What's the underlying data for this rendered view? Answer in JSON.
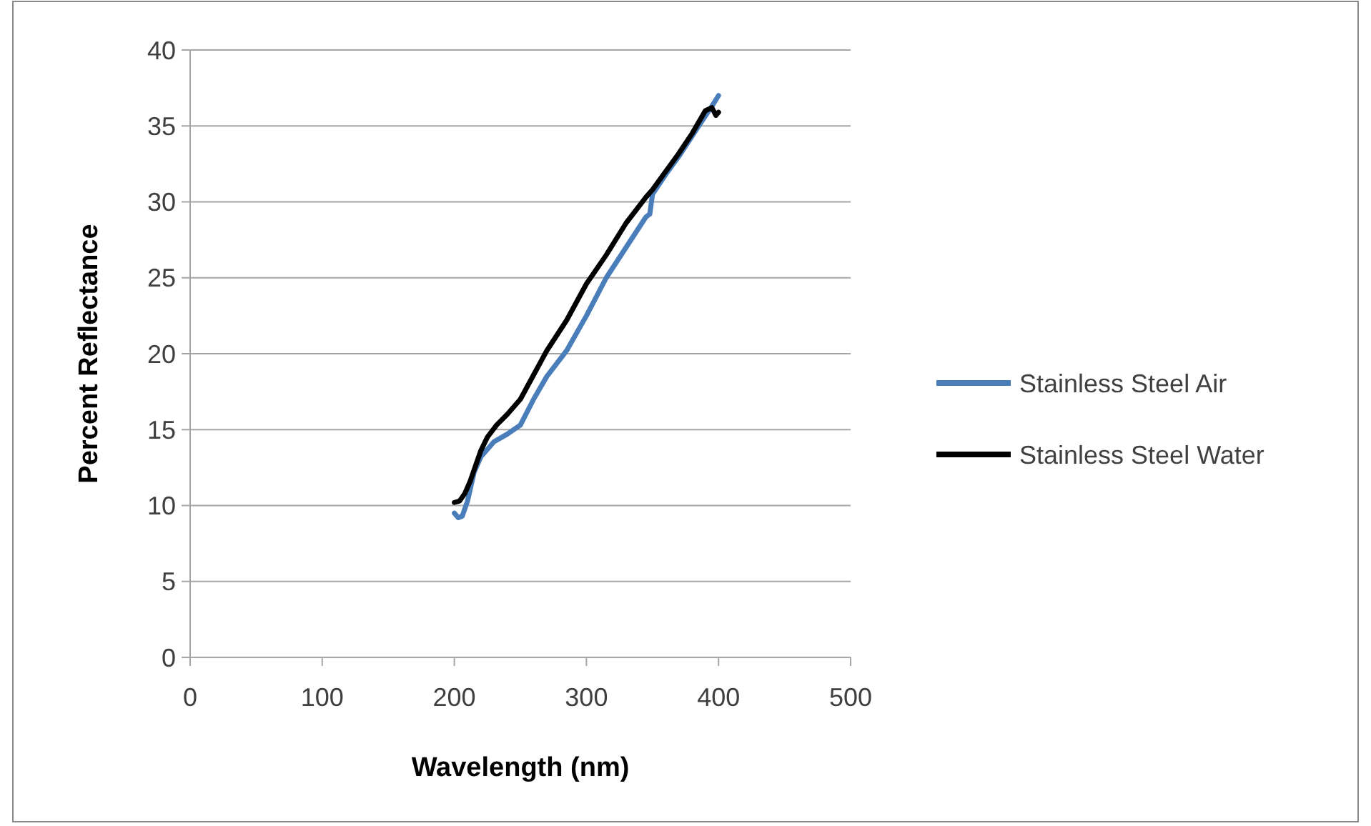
{
  "chart_data": {
    "type": "line",
    "xlabel": "Wavelength (nm)",
    "ylabel": "Percent Reflectance",
    "xlim": [
      0,
      500
    ],
    "xticks": [
      0,
      100,
      200,
      300,
      400,
      500
    ],
    "ylim": [
      0,
      40
    ],
    "yticks": [
      0,
      5,
      10,
      15,
      20,
      25,
      30,
      35,
      40
    ],
    "grid": "y",
    "legend": "right",
    "marker": "none",
    "line_style": "solid",
    "series": [
      {
        "name": "Stainless Steel Air",
        "color": "#4a7ebb",
        "x": [
          200,
          203,
          206,
          210,
          215,
          220,
          230,
          240,
          250,
          260,
          270,
          285,
          300,
          315,
          330,
          345,
          348,
          350,
          360,
          370,
          385,
          395,
          400
        ],
        "values": [
          9.5,
          9.2,
          9.3,
          10.3,
          12.2,
          13.2,
          14.2,
          14.7,
          15.3,
          17,
          18.5,
          20.2,
          22.5,
          25,
          27,
          29,
          29.2,
          30.5,
          31.8,
          33,
          35,
          36.3,
          37
        ]
      },
      {
        "name": "Stainless Steel Water",
        "color": "#000000",
        "x": [
          200,
          204,
          208,
          212,
          216,
          220,
          225,
          232,
          240,
          250,
          260,
          270,
          285,
          300,
          315,
          330,
          345,
          350,
          360,
          370,
          380,
          390,
          395,
          398,
          400
        ],
        "values": [
          10.2,
          10.3,
          10.8,
          11.6,
          12.6,
          13.6,
          14.5,
          15.3,
          16,
          17,
          18.6,
          20.2,
          22.2,
          24.6,
          26.5,
          28.6,
          30.3,
          30.8,
          32,
          33.2,
          34.5,
          36,
          36.2,
          35.7,
          35.9
        ]
      }
    ]
  }
}
